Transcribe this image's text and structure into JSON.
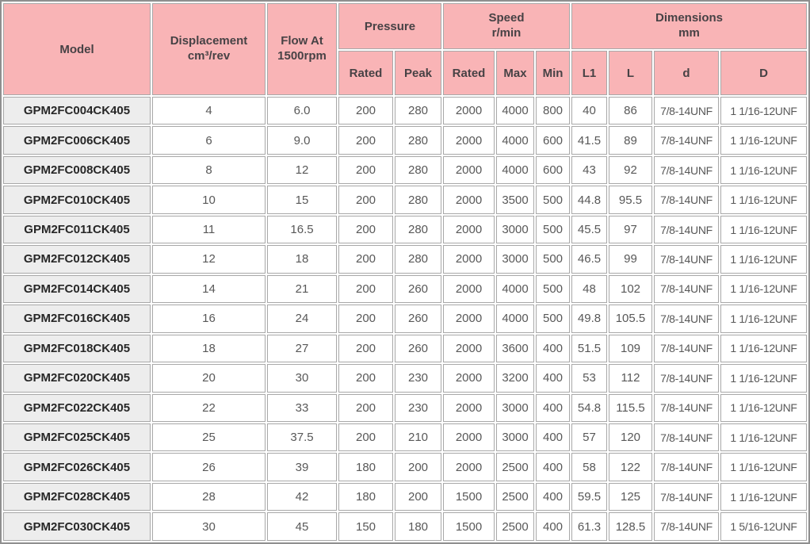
{
  "colors": {
    "header-bg": "#f9b4b6",
    "model-col-bg": "#ededed",
    "grid-line": "#a8a8a8",
    "outer-border": "#8f8f8f"
  },
  "table": {
    "headers": {
      "model": "Model",
      "displacement": "Displacement\ncm³/rev",
      "flow": "Flow At\n1500rpm",
      "pressure": "Pressure",
      "pressure_sub": [
        "Rated",
        "Peak"
      ],
      "speed": "Speed\nr/min",
      "speed_sub": [
        "Rated",
        "Max",
        "Min"
      ],
      "dimensions": "Dimensions\nmm",
      "dimensions_sub": [
        "L1",
        "L",
        "d",
        "D"
      ]
    },
    "rows": [
      [
        "GPM2FC004CK405",
        "4",
        "6.0",
        "200",
        "280",
        "2000",
        "4000",
        "800",
        "40",
        "86",
        "7/8-14UNF",
        "1 1/16-12UNF"
      ],
      [
        "GPM2FC006CK405",
        "6",
        "9.0",
        "200",
        "280",
        "2000",
        "4000",
        "600",
        "41.5",
        "89",
        "7/8-14UNF",
        "1 1/16-12UNF"
      ],
      [
        "GPM2FC008CK405",
        "8",
        "12",
        "200",
        "280",
        "2000",
        "4000",
        "600",
        "43",
        "92",
        "7/8-14UNF",
        "1 1/16-12UNF"
      ],
      [
        "GPM2FC010CK405",
        "10",
        "15",
        "200",
        "280",
        "2000",
        "3500",
        "500",
        "44.8",
        "95.5",
        "7/8-14UNF",
        "1 1/16-12UNF"
      ],
      [
        "GPM2FC011CK405",
        "11",
        "16.5",
        "200",
        "280",
        "2000",
        "3000",
        "500",
        "45.5",
        "97",
        "7/8-14UNF",
        "1 1/16-12UNF"
      ],
      [
        "GPM2FC012CK405",
        "12",
        "18",
        "200",
        "280",
        "2000",
        "3000",
        "500",
        "46.5",
        "99",
        "7/8-14UNF",
        "1 1/16-12UNF"
      ],
      [
        "GPM2FC014CK405",
        "14",
        "21",
        "200",
        "260",
        "2000",
        "4000",
        "500",
        "48",
        "102",
        "7/8-14UNF",
        "1 1/16-12UNF"
      ],
      [
        "GPM2FC016CK405",
        "16",
        "24",
        "200",
        "260",
        "2000",
        "4000",
        "500",
        "49.8",
        "105.5",
        "7/8-14UNF",
        "1 1/16-12UNF"
      ],
      [
        "GPM2FC018CK405",
        "18",
        "27",
        "200",
        "260",
        "2000",
        "3600",
        "400",
        "51.5",
        "109",
        "7/8-14UNF",
        "1 1/16-12UNF"
      ],
      [
        "GPM2FC020CK405",
        "20",
        "30",
        "200",
        "230",
        "2000",
        "3200",
        "400",
        "53",
        "112",
        "7/8-14UNF",
        "1 1/16-12UNF"
      ],
      [
        "GPM2FC022CK405",
        "22",
        "33",
        "200",
        "230",
        "2000",
        "3000",
        "400",
        "54.8",
        "115.5",
        "7/8-14UNF",
        "1 1/16-12UNF"
      ],
      [
        "GPM2FC025CK405",
        "25",
        "37.5",
        "200",
        "210",
        "2000",
        "3000",
        "400",
        "57",
        "120",
        "7/8-14UNF",
        "1 1/16-12UNF"
      ],
      [
        "GPM2FC026CK405",
        "26",
        "39",
        "180",
        "200",
        "2000",
        "2500",
        "400",
        "58",
        "122",
        "7/8-14UNF",
        "1 1/16-12UNF"
      ],
      [
        "GPM2FC028CK405",
        "28",
        "42",
        "180",
        "200",
        "1500",
        "2500",
        "400",
        "59.5",
        "125",
        "7/8-14UNF",
        "1 1/16-12UNF"
      ],
      [
        "GPM2FC030CK405",
        "30",
        "45",
        "150",
        "180",
        "1500",
        "2500",
        "400",
        "61.3",
        "128.5",
        "7/8-14UNF",
        "1 5/16-12UNF"
      ]
    ]
  }
}
